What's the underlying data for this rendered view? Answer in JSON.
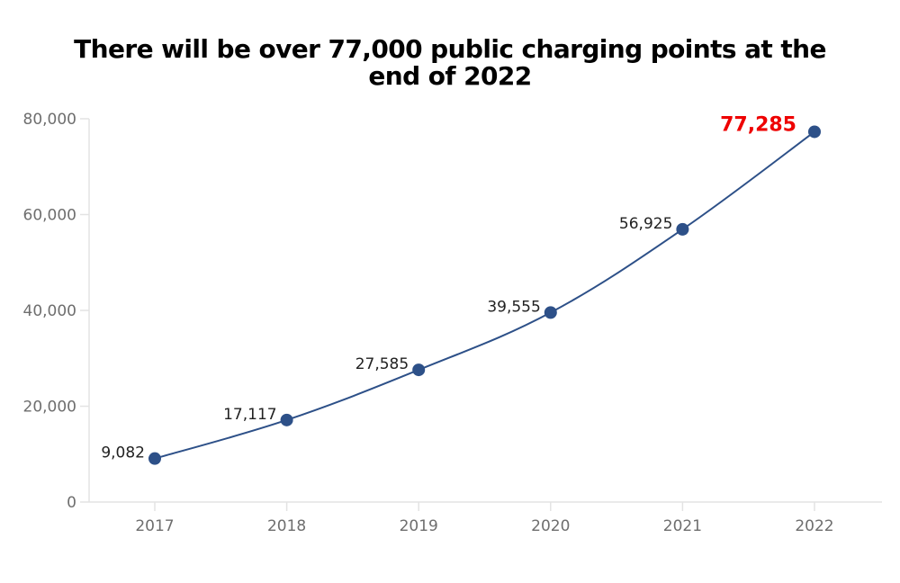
{
  "chart_data": {
    "type": "line",
    "title_lines": [
      "There will be over 77,000 public charging points at the",
      "end of 2022"
    ],
    "title": "There will be over 77,000 public charging points at the end of 2022",
    "xlabel": "",
    "ylabel": "",
    "categories": [
      "2017",
      "2018",
      "2019",
      "2020",
      "2021",
      "2022"
    ],
    "series": [
      {
        "name": "Public charging points",
        "values": [
          9082,
          17117,
          27585,
          39555,
          56925,
          77285
        ],
        "labels": [
          "9,082",
          "17,117",
          "27,585",
          "39,555",
          "56,925",
          "77,285"
        ],
        "highlight_index": 5,
        "color": "#2d5088"
      }
    ],
    "ylim": [
      0,
      80000
    ],
    "yticks": [
      0,
      20000,
      40000,
      60000,
      80000
    ],
    "ytick_labels": [
      "0",
      "20,000",
      "40,000",
      "60,000",
      "80,000"
    ],
    "highlight_color": "#ee0000",
    "grid": false,
    "legend": "none",
    "smooth": true
  }
}
